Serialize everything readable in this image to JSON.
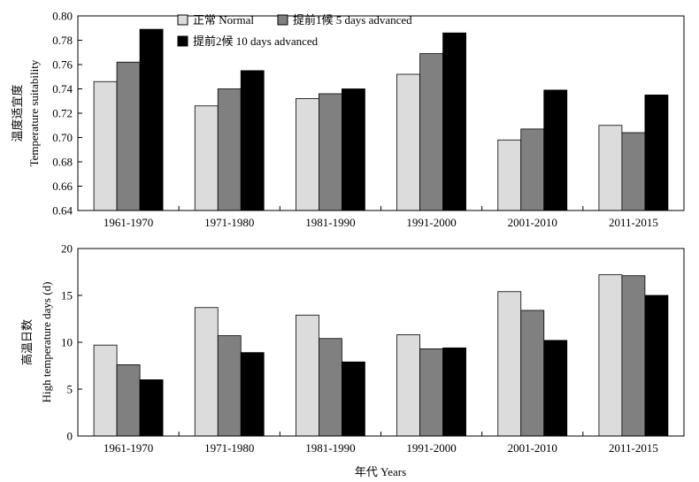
{
  "chart_data": [
    {
      "type": "bar",
      "categories": [
        "1961-1970",
        "1971-1980",
        "1981-1990",
        "1991-2000",
        "2001-2010",
        "2011-2015"
      ],
      "series": [
        {
          "name": "正常 Normal",
          "values": [
            0.746,
            0.726,
            0.732,
            0.752,
            0.698,
            0.71
          ]
        },
        {
          "name": "提前1候 5 days advanced",
          "values": [
            0.762,
            0.74,
            0.736,
            0.769,
            0.707,
            0.704
          ]
        },
        {
          "name": "提前2候 10 days advanced",
          "values": [
            0.789,
            0.755,
            0.74,
            0.786,
            0.739,
            0.735
          ]
        }
      ],
      "ylabel_cn": "温度适宜度",
      "ylabel": "Temperature suitability",
      "ylim": [
        0.64,
        0.8
      ],
      "yticks": [
        "0.64",
        "0.66",
        "0.68",
        "0.70",
        "0.72",
        "0.74",
        "0.76",
        "0.78",
        "0.80"
      ],
      "legend_position": "top-center",
      "grid": false
    },
    {
      "type": "bar",
      "categories": [
        "1961-1970",
        "1971-1980",
        "1981-1990",
        "1991-2000",
        "2001-2010",
        "2011-2015"
      ],
      "series": [
        {
          "name": "正常 Normal",
          "values": [
            9.7,
            13.7,
            12.9,
            10.8,
            15.4,
            17.2
          ]
        },
        {
          "name": "提前1候 5 days advanced",
          "values": [
            7.6,
            10.7,
            10.4,
            9.3,
            13.4,
            17.1
          ]
        },
        {
          "name": "提前2候 10 days advanced",
          "values": [
            6.0,
            8.9,
            7.9,
            9.4,
            10.2,
            15.0
          ]
        }
      ],
      "ylabel_cn": "高温日数",
      "ylabel": "High temperature days (d)",
      "xlabel": "年代 Years",
      "ylim": [
        0,
        20
      ],
      "yticks": [
        "0",
        "5",
        "10",
        "15",
        "20"
      ],
      "grid": false
    }
  ],
  "colors": {
    "series": [
      "#dcdcdc",
      "#808080",
      "#000000"
    ],
    "stroke": "#000000"
  }
}
